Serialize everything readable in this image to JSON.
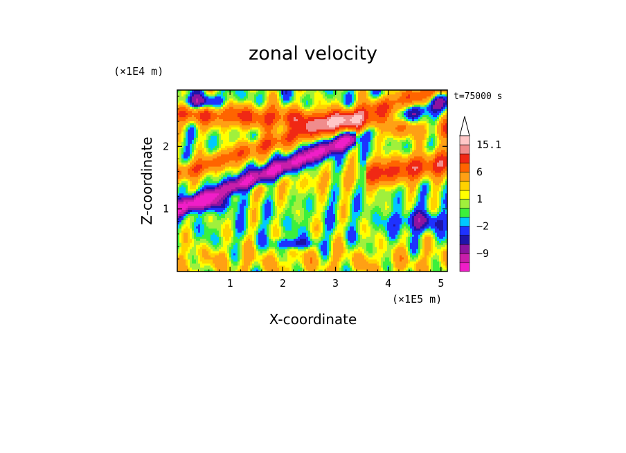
{
  "chart_data": {
    "type": "heatmap",
    "title": "zonal velocity",
    "xlabel": "X-coordinate",
    "ylabel": "Z-coordinate",
    "x_scale_label": "(×1E5 m)",
    "y_scale_label": "(×1E4 m)",
    "time_label": "t=75000 s",
    "xlim": [
      0,
      5.12
    ],
    "ylim": [
      0,
      2.9
    ],
    "x_ticks": [
      1,
      2,
      3,
      4,
      5
    ],
    "y_ticks": [
      1,
      2
    ],
    "x_tick_labels": [
      "1",
      "2",
      "3",
      "4",
      "5"
    ],
    "y_tick_labels": [
      "1",
      "2"
    ],
    "colorbar": {
      "levels": [
        -15,
        -12,
        -9,
        -6,
        -4,
        -2,
        -1,
        0,
        1,
        2,
        3,
        6,
        9,
        12,
        15.1
      ],
      "colors": [
        "#f01ec8",
        "#c81eaa",
        "#8c14a0",
        "#1e14aa",
        "#1e32ff",
        "#00c8ff",
        "#3cf03c",
        "#a0f03c",
        "#ffff00",
        "#ffd200",
        "#ffa014",
        "#ff6400",
        "#f02814",
        "#f08c8c",
        "#ffc8c8"
      ],
      "labeled_levels": [
        "15.1",
        "6",
        "1",
        "−2",
        "−9"
      ],
      "labeled_values": [
        15.1,
        6,
        1,
        -2,
        -9
      ]
    }
  }
}
